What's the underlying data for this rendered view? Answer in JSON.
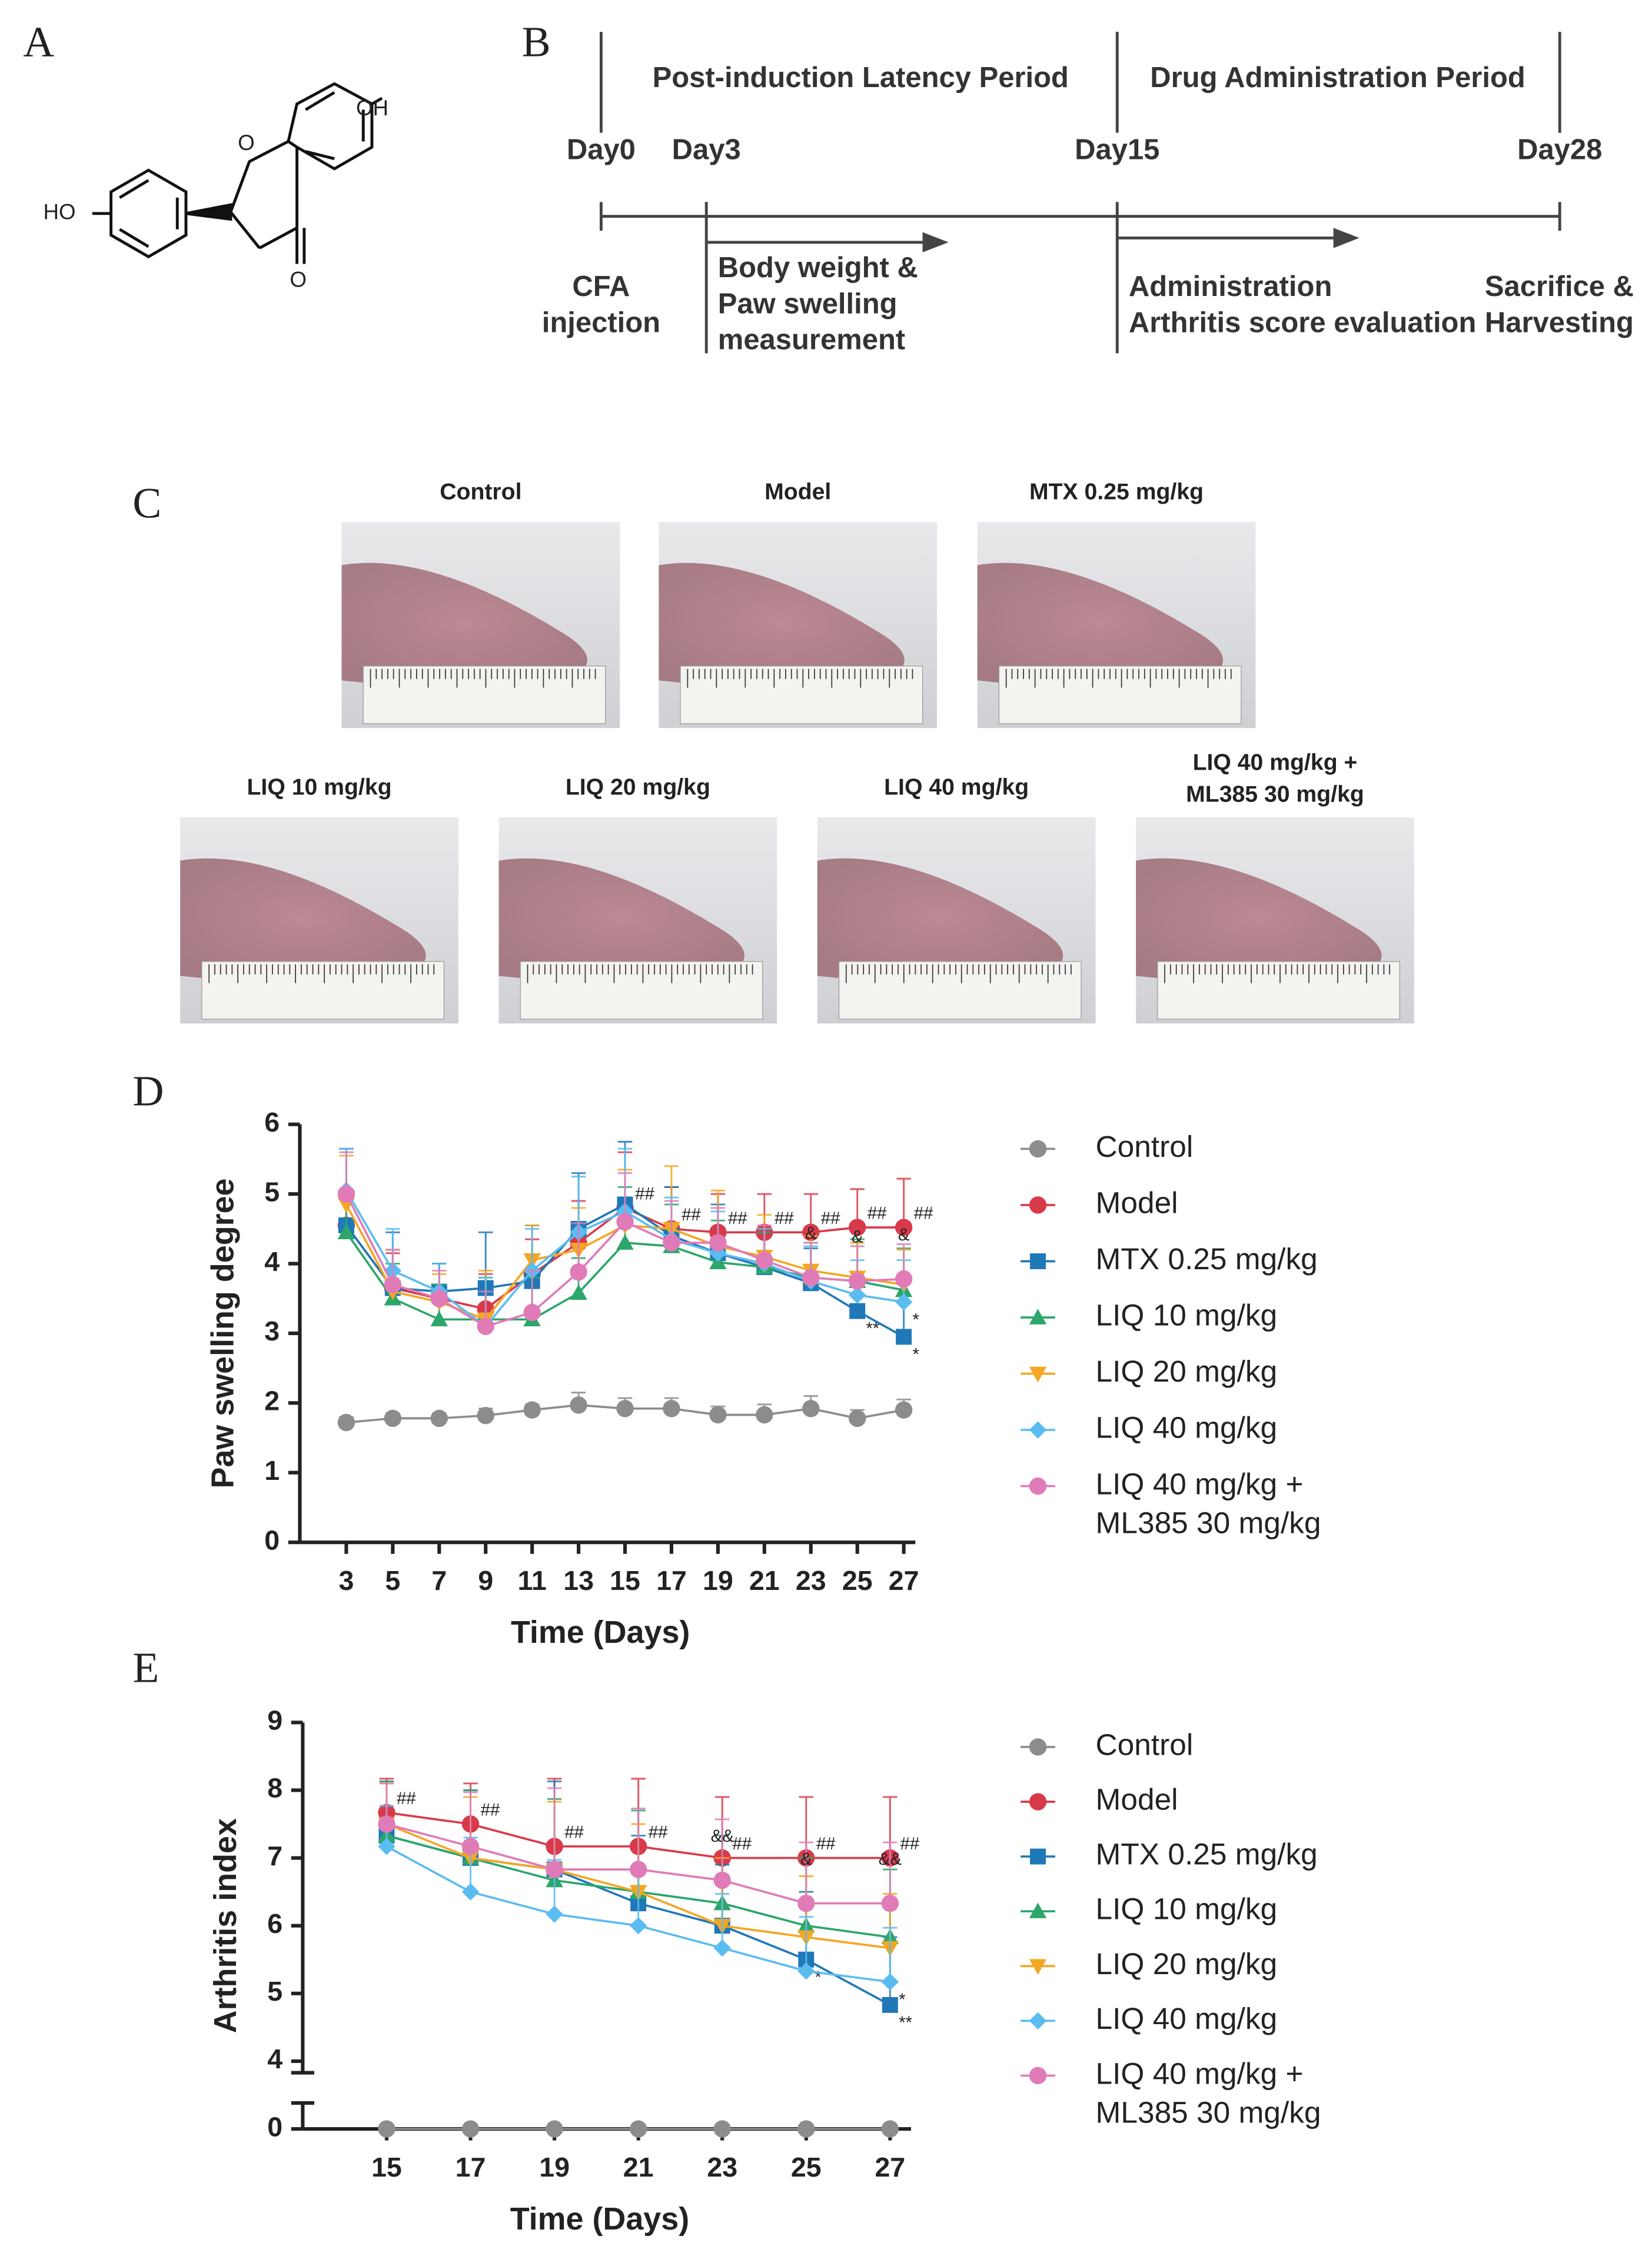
{
  "panels": {
    "a": "A",
    "b": "B",
    "c": "C",
    "d": "D",
    "e": "E"
  },
  "structure": {
    "labels": [
      "HO",
      "O",
      "O",
      "OH"
    ]
  },
  "timeline": {
    "periods": [
      "Post-induction Latency Period",
      "Drug Administration Period"
    ],
    "days": [
      "Day0",
      "Day3",
      "Day15",
      "Day28"
    ],
    "events": [
      [
        "CFA",
        "injection"
      ],
      [
        "Body weight &",
        "Paw swelling",
        "measurement"
      ],
      [
        "Administration",
        "Arthritis score evaluation"
      ],
      [
        "Sacrifice &",
        "Harvesting"
      ]
    ]
  },
  "photos": [
    "Control",
    "Model",
    "MTX 0.25 mg/kg",
    "LIQ 10 mg/kg",
    "LIQ 20 mg/kg",
    "LIQ 40 mg/kg",
    "LIQ 40 mg/kg + ML385 30 mg/kg"
  ],
  "chart_data": [
    {
      "type": "line",
      "xlabel": "Time (Days)",
      "ylabel": "Paw swelling degree",
      "x": [
        3,
        5,
        7,
        9,
        11,
        13,
        15,
        17,
        19,
        21,
        23,
        25,
        27
      ],
      "xlim": [
        1,
        27.5
      ],
      "xticks": [
        3,
        5,
        7,
        9,
        11,
        13,
        15,
        17,
        19,
        21,
        23,
        25,
        27
      ],
      "ylim": [
        0,
        6
      ],
      "yticks": [
        0,
        1,
        2,
        3,
        4,
        5,
        6
      ],
      "legend": "right",
      "series": [
        {
          "name": "Control",
          "color": "#8c8c8c",
          "marker": "circle",
          "values": [
            1.72,
            1.78,
            1.78,
            1.82,
            1.9,
            1.97,
            1.92,
            1.92,
            1.83,
            1.83,
            1.92,
            1.78,
            1.9
          ],
          "errors": [
            0.08,
            0.07,
            0.07,
            0.1,
            0.08,
            0.18,
            0.15,
            0.15,
            0.12,
            0.15,
            0.18,
            0.12,
            0.15
          ]
        },
        {
          "name": "Model",
          "color": "#d93a4a",
          "marker": "circle",
          "values": [
            4.55,
            3.65,
            3.5,
            3.35,
            3.85,
            4.3,
            4.8,
            4.5,
            4.45,
            4.45,
            4.45,
            4.52,
            4.52
          ],
          "errors": [
            0.5,
            0.5,
            0.5,
            0.5,
            0.5,
            0.6,
            0.8,
            0.6,
            0.55,
            0.55,
            0.55,
            0.55,
            0.7
          ],
          "annotations": [
            null,
            null,
            null,
            null,
            null,
            null,
            "##",
            "##",
            "##",
            "##",
            "##",
            "##",
            "##"
          ]
        },
        {
          "name": "MTX 0.25 mg/kg",
          "color": "#1f78b8",
          "marker": "square",
          "values": [
            4.55,
            3.65,
            3.6,
            3.65,
            3.75,
            4.5,
            4.85,
            4.4,
            4.15,
            3.95,
            3.72,
            3.32,
            2.95
          ],
          "errors": [
            1.1,
            0.8,
            0.4,
            0.8,
            0.8,
            0.8,
            0.9,
            0.7,
            0.7,
            0.5,
            0.5,
            0.5,
            0.5
          ],
          "stars": [
            null,
            null,
            null,
            null,
            null,
            null,
            null,
            null,
            null,
            null,
            null,
            "**",
            "*"
          ]
        },
        {
          "name": "LIQ 10 mg/kg",
          "color": "#2ca66a",
          "marker": "triangle",
          "values": [
            4.45,
            3.5,
            3.2,
            3.2,
            3.2,
            3.58,
            4.3,
            4.25,
            4.02,
            3.95,
            3.8,
            3.75,
            3.62
          ],
          "errors": [
            0.6,
            0.5,
            0.5,
            0.6,
            0.6,
            0.5,
            0.8,
            0.6,
            0.6,
            0.5,
            0.5,
            0.6,
            0.6
          ]
        },
        {
          "name": "LIQ 20 mg/kg",
          "color": "#f5a623",
          "marker": "triangle-down",
          "values": [
            4.85,
            3.6,
            3.45,
            3.2,
            4.05,
            4.2,
            4.55,
            4.5,
            4.25,
            4.1,
            3.9,
            3.8,
            3.7
          ],
          "errors": [
            0.7,
            0.6,
            0.4,
            0.7,
            0.5,
            0.6,
            0.8,
            0.9,
            0.8,
            0.6,
            0.5,
            0.5,
            0.5
          ]
        },
        {
          "name": "LIQ 40 mg/kg",
          "color": "#5bbcf0",
          "marker": "diamond",
          "values": [
            5.05,
            3.9,
            3.6,
            3.1,
            3.9,
            4.45,
            4.75,
            4.35,
            4.15,
            4.0,
            3.75,
            3.55,
            3.45
          ],
          "errors": [
            0.6,
            0.6,
            0.4,
            0.7,
            0.6,
            0.8,
            0.9,
            0.6,
            0.6,
            0.5,
            0.5,
            0.5,
            0.6
          ],
          "stars": [
            null,
            null,
            null,
            null,
            null,
            null,
            null,
            null,
            null,
            null,
            null,
            null,
            "*"
          ]
        },
        {
          "name": "LIQ 40 mg/kg + ML385 30 mg/kg",
          "color": "#e07bb8",
          "marker": "circle",
          "values": [
            5.0,
            3.7,
            3.5,
            3.1,
            3.3,
            3.88,
            4.6,
            4.3,
            4.3,
            4.05,
            3.8,
            3.75,
            3.78
          ],
          "errors": [
            0.6,
            0.5,
            0.4,
            0.5,
            0.6,
            0.7,
            0.7,
            0.6,
            0.5,
            0.5,
            0.5,
            0.5,
            0.5
          ],
          "annotations": [
            null,
            null,
            null,
            null,
            null,
            null,
            null,
            null,
            null,
            null,
            "&",
            "&",
            "&"
          ]
        }
      ]
    },
    {
      "type": "line",
      "xlabel": "Time (Days)",
      "ylabel": "Arthritis index",
      "x": [
        15,
        17,
        19,
        21,
        23,
        25,
        27
      ],
      "xlim": [
        13,
        27.5
      ],
      "xticks": [
        15,
        17,
        19,
        21,
        23,
        25,
        27
      ],
      "ylim": [
        0,
        9
      ],
      "ybreak": [
        0,
        4
      ],
      "yticks": [
        0,
        4,
        5,
        6,
        7,
        8,
        9
      ],
      "legend": "right",
      "series": [
        {
          "name": "Control",
          "color": "#8c8c8c",
          "marker": "circle",
          "values": [
            0,
            0,
            0,
            0,
            0,
            0,
            0
          ],
          "errors": [
            0,
            0,
            0,
            0,
            0,
            0,
            0
          ]
        },
        {
          "name": "Model",
          "color": "#d93a4a",
          "marker": "circle",
          "values": [
            7.67,
            7.5,
            7.17,
            7.17,
            7.0,
            7.0,
            7.0
          ],
          "errors": [
            0.5,
            0.6,
            1.0,
            1.0,
            0.9,
            0.9,
            0.9
          ],
          "annotations": [
            "##",
            "##",
            "##",
            "##",
            "##",
            "##",
            "##"
          ]
        },
        {
          "name": "MTX 0.25 mg/kg",
          "color": "#1f78b8",
          "marker": "square",
          "values": [
            7.33,
            7.0,
            6.83,
            6.33,
            6.0,
            5.5,
            4.83
          ],
          "errors": [
            0.8,
            1.0,
            1.3,
            1.0,
            0.9,
            1.0,
            1.0
          ],
          "stars": [
            null,
            null,
            null,
            null,
            null,
            "*",
            "**"
          ]
        },
        {
          "name": "LIQ 10 mg/kg",
          "color": "#2ca66a",
          "marker": "triangle",
          "values": [
            7.33,
            7.0,
            6.67,
            6.5,
            6.33,
            6.0,
            5.83
          ],
          "errors": [
            0.8,
            1.0,
            1.2,
            1.2,
            1.0,
            1.0,
            1.0
          ]
        },
        {
          "name": "LIQ 20 mg/kg",
          "color": "#f5a623",
          "marker": "triangle-down",
          "values": [
            7.5,
            7.0,
            6.83,
            6.5,
            6.0,
            5.83,
            5.67
          ],
          "errors": [
            0.6,
            0.9,
            1.0,
            1.0,
            1.0,
            0.9,
            0.8
          ]
        },
        {
          "name": "LIQ 40 mg/kg",
          "color": "#5bbcf0",
          "marker": "diamond",
          "values": [
            7.17,
            6.5,
            6.17,
            6.0,
            5.67,
            5.33,
            5.17
          ],
          "errors": [
            0.6,
            0.8,
            0.8,
            0.8,
            0.8,
            0.8,
            0.8
          ],
          "stars": [
            null,
            null,
            null,
            null,
            null,
            null,
            "*"
          ]
        },
        {
          "name": "LIQ 40 mg/kg + ML385 30 mg/kg",
          "color": "#e07bb8",
          "marker": "circle",
          "values": [
            7.5,
            7.17,
            6.83,
            6.83,
            6.67,
            6.33,
            6.33
          ],
          "errors": [
            0.6,
            0.8,
            1.2,
            0.9,
            0.9,
            0.9,
            0.9
          ],
          "annotations": [
            null,
            null,
            null,
            null,
            "&&",
            "&",
            "&&"
          ]
        }
      ]
    }
  ]
}
